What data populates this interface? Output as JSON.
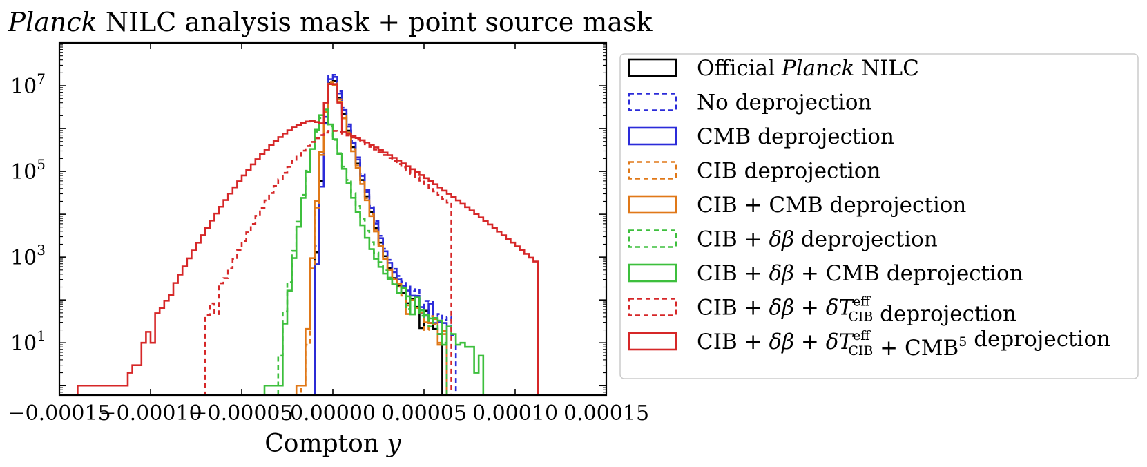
{
  "chart_data": {
    "type": "histogram",
    "title": {
      "prefix": "Planck",
      "rest": " NILC analysis mask + point source mask"
    },
    "xlabel": {
      "text": "Compton ",
      "var": "y"
    },
    "ylabel": "",
    "xscale": "linear",
    "yscale": "log",
    "xlim": [
      -0.00015,
      0.00015
    ],
    "ylim": [
      0.6,
      100000000
    ],
    "grid": false,
    "legend_position": "outside right",
    "xticks": [
      {
        "value": -0.00015,
        "label": "−0.00015"
      },
      {
        "value": -0.0001,
        "label": "−0.00010"
      },
      {
        "value": -5e-05,
        "label": "−0.00005"
      },
      {
        "value": 0.0,
        "label": "0.00000"
      },
      {
        "value": 5e-05,
        "label": "0.00005"
      },
      {
        "value": 0.0001,
        "label": "0.00010"
      },
      {
        "value": 0.00015,
        "label": "0.00015"
      }
    ],
    "yticks": [
      {
        "value": 10,
        "base": "10",
        "exp": "1"
      },
      {
        "value": 1000,
        "base": "10",
        "exp": "3"
      },
      {
        "value": 100000,
        "base": "10",
        "exp": "5"
      },
      {
        "value": 10000000,
        "base": "10",
        "exp": "7"
      }
    ],
    "series": [
      {
        "name": "Official Planck NILC",
        "label_parts": [
          {
            "t": "Official "
          },
          {
            "t": "Planck",
            "it": true
          },
          {
            "t": " NILC"
          }
        ],
        "color": "#000000",
        "dashed": false,
        "peak_x": 0.0,
        "peak": 20000000,
        "left_scale": 1.8e-06,
        "right_scale": 4.5e-06,
        "right_tail_scale": 1.05e-05,
        "right_tail_amp": 5000,
        "x_min": -1.05e-05,
        "x_max": 6.1e-05
      },
      {
        "name": "No deprojection",
        "label_parts": [
          {
            "t": "No deprojection"
          }
        ],
        "color": "#2b2bd9",
        "dashed": true,
        "peak_x": 0.0,
        "peak": 28000000,
        "left_scale": 1.8e-06,
        "right_scale": 4.5e-06,
        "right_tail_scale": 1.2e-05,
        "right_tail_amp": 6000,
        "x_min": -1.05e-05,
        "x_max": 6.65e-05
      },
      {
        "name": "CMB deprojection",
        "label_parts": [
          {
            "t": "CMB deprojection"
          }
        ],
        "color": "#2b2bd9",
        "dashed": false,
        "peak_x": 0.0,
        "peak": 25000000,
        "left_scale": 1.7e-06,
        "right_scale": 4.5e-06,
        "right_tail_scale": 1.15e-05,
        "right_tail_amp": 5500,
        "x_min": -1.05e-05,
        "x_max": 6.15e-05
      },
      {
        "name": "CIB deprojection",
        "label_parts": [
          {
            "t": "CIB deprojection"
          }
        ],
        "color": "#e07818",
        "dashed": true,
        "peak_x": 0.0,
        "peak": 18000000,
        "left_scale": 2.2e-06,
        "right_scale": 4.5e-06,
        "right_tail_scale": 1.05e-05,
        "right_tail_amp": 5000,
        "x_min": -1.8e-05,
        "x_max": 6.15e-05
      },
      {
        "name": "CIB + CMB deprojection",
        "label_parts": [
          {
            "t": "CIB + CMB deprojection"
          }
        ],
        "color": "#e07818",
        "dashed": false,
        "peak_x": 0.0,
        "peak": 16000000,
        "left_scale": 2.3e-06,
        "right_scale": 4.5e-06,
        "right_tail_scale": 1.05e-05,
        "right_tail_amp": 5000,
        "x_min": -1.9e-05,
        "x_max": 6.25e-05
      },
      {
        "name": "CIB + δβ deprojection",
        "label_parts": [
          {
            "t": "CIB + "
          },
          {
            "t": "δβ",
            "it": true
          },
          {
            "t": " deprojection"
          }
        ],
        "color": "#3dbf3d",
        "dashed": true,
        "peak_x": -4e-06,
        "peak": 2500000,
        "left_scale": 4.2e-06,
        "right_scale": 5.5e-06,
        "right_tail_scale": 1.1e-05,
        "right_tail_amp": 6000,
        "x_min": -2.95e-05,
        "x_max": 6.35e-05
      },
      {
        "name": "CIB + δβ + CMB deprojection",
        "label_parts": [
          {
            "t": "CIB + "
          },
          {
            "t": "δβ",
            "it": true
          },
          {
            "t": " + CMB deprojection"
          }
        ],
        "color": "#3dbf3d",
        "dashed": false,
        "peak_x": -4e-06,
        "peak": 3000000,
        "left_scale": 4e-06,
        "right_scale": 5e-06,
        "right_tail_scale": 1.2e-05,
        "right_tail_amp": 5000,
        "x_min": -3.75e-05,
        "x_max": 8.25e-05
      },
      {
        "name": "CIB + δβ + δT^eff_CIB deprojection",
        "label_parts": [
          {
            "t": "CIB + "
          },
          {
            "t": "δβ",
            "it": true
          },
          {
            "t": " + "
          },
          {
            "t": "δT",
            "it": true
          },
          {
            "sup": "eff",
            "sub": "CIB"
          },
          {
            "t": " deprojection"
          }
        ],
        "color": "#d62728",
        "dashed": true,
        "peak_x": 0.0,
        "peak": 900000,
        "left_scale": 1.05e-05,
        "right_scale": 1.4e-05,
        "right_tail_scale": 1.4e-05,
        "right_tail_amp": 0,
        "x_min": -6.9e-05,
        "x_max": 6.6e-05
      },
      {
        "name": "CIB + δβ + δT^eff_CIB + CMB^5 deprojection",
        "label_parts": [
          {
            "t": "CIB + "
          },
          {
            "t": "δβ",
            "it": true
          },
          {
            "t": " + "
          },
          {
            "t": "δT",
            "it": true
          },
          {
            "sup": "eff",
            "sub": "CIB"
          },
          {
            "t": " + CMB"
          },
          {
            "sup": "5"
          },
          {
            "t": " deprojection"
          }
        ],
        "color": "#d62728",
        "dashed": false,
        "peak_x": -1.2e-05,
        "peak": 1500000,
        "left_scale": 1.25e-05,
        "right_scale": 1.65e-05,
        "right_tail_scale": 1.65e-05,
        "right_tail_amp": 0,
        "spike": 18000000,
        "x_min": -0.000139,
        "x_max": 0.000113
      }
    ]
  }
}
